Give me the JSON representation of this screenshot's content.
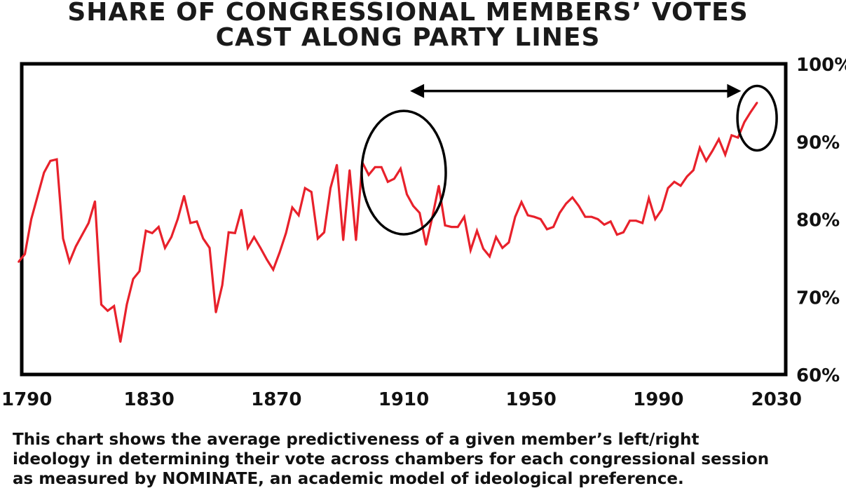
{
  "title_lines": [
    "SHARE OF CONGRESSIONAL MEMBERS’ VOTES",
    "CAST ALONG PARTY LINES"
  ],
  "caption_lines": [
    "This chart shows the average predictiveness of a given member’s left/right",
    "ideology in determining their vote across chambers for each congressional session",
    "as measured by NOMINATE, an academic model of ideological preference."
  ],
  "chart_data": {
    "type": "line",
    "title": "SHARE OF CONGRESSIONAL MEMBERS’ VOTES CAST ALONG PARTY LINES",
    "xlabel": "",
    "ylabel": "",
    "xlim": [
      1790,
      2030
    ],
    "ylim": [
      60,
      100
    ],
    "x_ticks": [
      1790,
      1830,
      1870,
      1910,
      1950,
      1990,
      2030
    ],
    "x_tick_labels": [
      "1790",
      "1830",
      "1870",
      "1910",
      "1950",
      "1990",
      "2030"
    ],
    "y_ticks": [
      60,
      70,
      80,
      90,
      100
    ],
    "y_tick_labels": [
      "60%",
      "70%",
      "80%",
      "90%",
      "100%"
    ],
    "y_axis_side": "right",
    "grid": false,
    "line_color": "#e8212b",
    "series": [
      {
        "name": "Share of votes cast along party lines",
        "x": [
          1789,
          1791,
          1793,
          1795,
          1797,
          1799,
          1801,
          1803,
          1805,
          1807,
          1809,
          1811,
          1813,
          1815,
          1817,
          1819,
          1821,
          1823,
          1825,
          1827,
          1829,
          1831,
          1833,
          1835,
          1837,
          1839,
          1841,
          1843,
          1845,
          1847,
          1849,
          1851,
          1853,
          1855,
          1857,
          1859,
          1861,
          1863,
          1865,
          1867,
          1869,
          1871,
          1873,
          1875,
          1877,
          1879,
          1881,
          1883,
          1885,
          1887,
          1889,
          1891,
          1893,
          1895,
          1897,
          1899,
          1901,
          1903,
          1905,
          1907,
          1909,
          1911,
          1913,
          1915,
          1917,
          1919,
          1921,
          1923,
          1925,
          1927,
          1929,
          1931,
          1933,
          1935,
          1937,
          1939,
          1941,
          1943,
          1945,
          1947,
          1949,
          1951,
          1953,
          1955,
          1957,
          1959,
          1961,
          1963,
          1965,
          1967,
          1969,
          1971,
          1973,
          1975,
          1977,
          1979,
          1981,
          1983,
          1985,
          1987,
          1989,
          1991,
          1993,
          1995,
          1997,
          1999,
          2001,
          2003,
          2005,
          2007,
          2009,
          2011,
          2013,
          2015,
          2017,
          2019,
          2021
        ],
        "values": [
          74.5,
          75.5,
          80,
          83,
          86,
          87.5,
          87.7,
          77.5,
          74.5,
          76.5,
          78,
          79.5,
          82.3,
          69,
          68.2,
          68.8,
          64.2,
          69,
          72.3,
          73.3,
          78.5,
          78.2,
          79,
          76.3,
          77.7,
          80,
          83,
          79.5,
          79.7,
          77.5,
          76.3,
          68,
          71.5,
          78.3,
          78.2,
          81.2,
          76.3,
          77.7,
          76.3,
          74.8,
          73.5,
          75.7,
          78.2,
          81.5,
          80.5,
          84,
          83.5,
          77.5,
          78.3,
          84,
          87,
          77.3,
          86.3,
          77.3,
          87.3,
          85.7,
          86.7,
          86.7,
          84.8,
          85.2,
          86.5,
          83.2,
          81.7,
          80.8,
          76.7,
          80.3,
          84.3,
          79.2,
          79,
          79,
          80.3,
          76,
          78.5,
          76.2,
          75.2,
          77.7,
          76.3,
          77,
          80.3,
          82.2,
          80.5,
          80.3,
          80,
          78.7,
          79,
          80.8,
          82,
          82.8,
          81.7,
          80.3,
          80.3,
          80,
          79.3,
          79.7,
          78,
          78.3,
          79.8,
          79.8,
          79.5,
          82.7,
          80,
          81.2,
          84,
          84.8,
          84.3,
          85.5,
          86.3,
          89.2,
          87.5,
          88.8,
          90.3,
          88.3,
          90.8,
          90.5,
          92.5,
          93.8,
          95
        ]
      }
    ],
    "annotations": [
      {
        "type": "ellipse",
        "label": "",
        "x_center": 1910,
        "y_center": 86
      },
      {
        "type": "ellipse",
        "label": "",
        "x_center": 2021,
        "y_center": 93
      },
      {
        "type": "double-arrow",
        "label": "",
        "x_start": 1912,
        "x_end": 2016,
        "y": 96.5
      }
    ]
  }
}
